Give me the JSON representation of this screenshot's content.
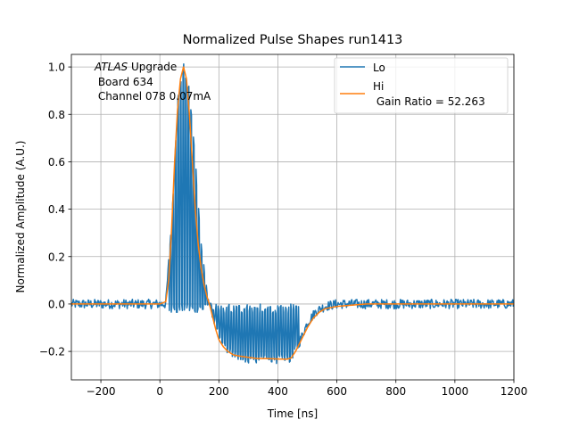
{
  "chart_data": {
    "type": "line",
    "title": "Normalized Pulse Shapes run1413",
    "xlabel": "Time [ns]",
    "ylabel": "Normalized Amplitude (A.U.)",
    "xlim": [
      -300,
      1200
    ],
    "ylim": [
      -0.32,
      1.053
    ],
    "xticks": [
      -200,
      0,
      200,
      400,
      600,
      800,
      1000,
      1200
    ],
    "xtick_labels": [
      "−200",
      "0",
      "200",
      "400",
      "600",
      "800",
      "1000",
      "1200"
    ],
    "yticks": [
      -0.2,
      0.0,
      0.2,
      0.4,
      0.6,
      0.8,
      1.0
    ],
    "ytick_labels": [
      "−0.2",
      "0.0",
      "0.2",
      "0.4",
      "0.6",
      "0.8",
      "1.0"
    ],
    "grid": true,
    "legend_placement": "top-right",
    "annotation": {
      "italic": "ATLAS",
      "line1_rest": " Upgrade",
      "line2": " Board 634",
      "line3": " Channel 078 0.07mA"
    },
    "series": [
      {
        "name": "Lo",
        "legend_label": "Lo",
        "color": "#1f77b4",
        "description": "Noisy low-gain pulse sampled with interleaved fast oscillation between envelope and baseline during pulse",
        "envelope": {
          "x": [
            -300,
            20,
            40,
            60,
            80,
            100,
            120,
            140,
            160,
            180,
            200,
            230,
            260,
            300,
            350,
            400,
            440,
            470,
            500,
            530,
            560,
            600,
            700,
            800,
            1000,
            1200
          ],
          "y": [
            0.0,
            0.0,
            0.35,
            0.85,
            1.0,
            0.9,
            0.6,
            0.25,
            0.05,
            -0.05,
            -0.15,
            -0.2,
            -0.22,
            -0.23,
            -0.235,
            -0.235,
            -0.23,
            -0.17,
            -0.08,
            -0.03,
            -0.01,
            0.0,
            0.0,
            0.0,
            0.0,
            0.0
          ]
        },
        "noise_amplitude": 0.02
      },
      {
        "name": "Hi",
        "legend_label": "Hi\n Gain Ratio = 52.263",
        "color": "#ff7f0e",
        "x": [
          -300,
          -200,
          -100,
          0,
          20,
          30,
          40,
          50,
          60,
          70,
          80,
          90,
          100,
          110,
          120,
          130,
          140,
          150,
          160,
          170,
          180,
          190,
          200,
          215,
          230,
          250,
          270,
          300,
          330,
          360,
          400,
          430,
          445,
          460,
          480,
          500,
          520,
          540,
          560,
          600,
          650,
          700,
          800,
          900,
          1000,
          1100,
          1200
        ],
        "y": [
          0.0,
          0.0,
          0.0,
          0.0,
          0.01,
          0.1,
          0.32,
          0.6,
          0.82,
          0.95,
          1.0,
          0.95,
          0.8,
          0.6,
          0.4,
          0.25,
          0.15,
          0.08,
          0.03,
          -0.01,
          -0.06,
          -0.11,
          -0.15,
          -0.18,
          -0.2,
          -0.215,
          -0.22,
          -0.225,
          -0.23,
          -0.23,
          -0.232,
          -0.233,
          -0.228,
          -0.2,
          -0.15,
          -0.1,
          -0.06,
          -0.035,
          -0.02,
          -0.01,
          -0.005,
          0.0,
          0.0,
          0.0,
          0.0,
          0.0,
          0.0
        ]
      }
    ]
  }
}
